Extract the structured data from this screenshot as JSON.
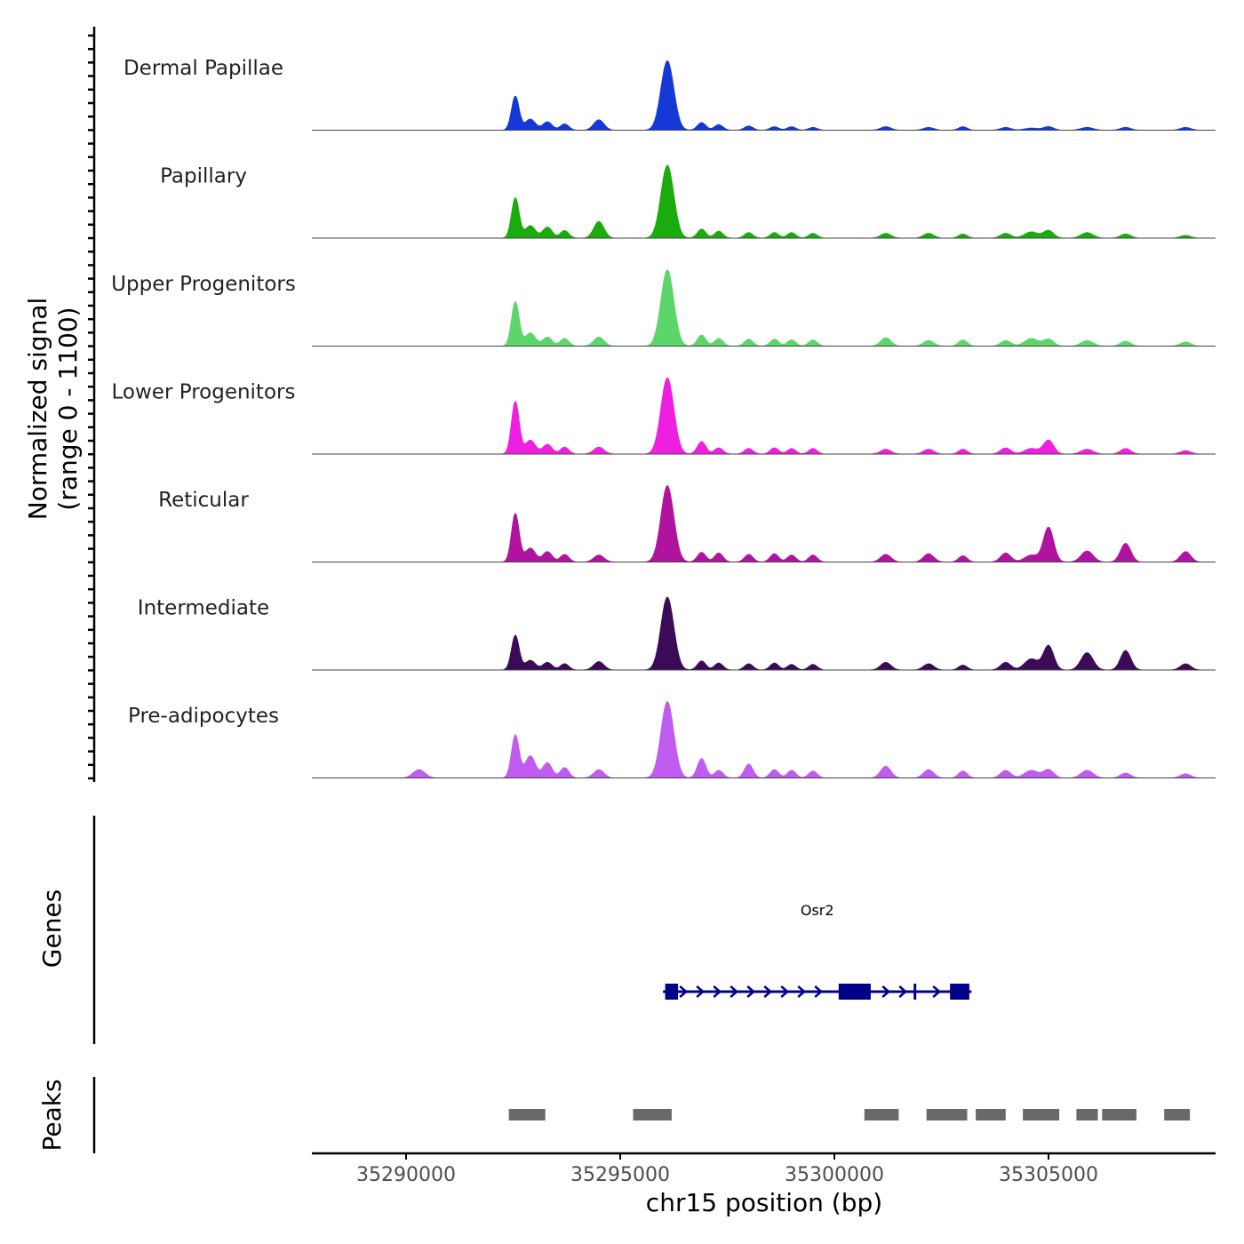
{
  "chart_data": {
    "type": "area",
    "title": "",
    "ylabel": "Normalized signal",
    "ylabel_range": "(range 0 - 1100)",
    "ylim": [
      0,
      1100
    ],
    "xlabel": "chr15 position (bp)",
    "xlim": [
      35287800,
      35308900
    ],
    "x_ticks": [
      35290000,
      35295000,
      35300000,
      35305000
    ],
    "x_tick_labels": [
      "35290000",
      "35295000",
      "35300000",
      "35305000"
    ],
    "peak_shapes": [
      {
        "center": 35292550,
        "width": 90
      },
      {
        "center": 35292900,
        "width": 120
      },
      {
        "center": 35293300,
        "width": 110
      },
      {
        "center": 35293700,
        "width": 100
      },
      {
        "center": 35294500,
        "width": 120
      },
      {
        "center": 35296100,
        "width": 150
      },
      {
        "center": 35296900,
        "width": 100
      },
      {
        "center": 35297300,
        "width": 100
      },
      {
        "center": 35298000,
        "width": 100
      },
      {
        "center": 35298600,
        "width": 100
      },
      {
        "center": 35299000,
        "width": 100
      },
      {
        "center": 35299500,
        "width": 100
      },
      {
        "center": 35301200,
        "width": 120
      },
      {
        "center": 35302200,
        "width": 120
      },
      {
        "center": 35303000,
        "width": 100
      },
      {
        "center": 35304000,
        "width": 120
      },
      {
        "center": 35304600,
        "width": 160
      },
      {
        "center": 35305000,
        "width": 120
      },
      {
        "center": 35305900,
        "width": 140
      },
      {
        "center": 35306800,
        "width": 120
      },
      {
        "center": 35308200,
        "width": 120
      },
      {
        "center": 35290300,
        "width": 140
      }
    ],
    "series": [
      {
        "name": "Dermal Papillae",
        "color": "#1538d6",
        "values": [
          490,
          160,
          120,
          90,
          150,
          1000,
          110,
          80,
          60,
          50,
          50,
          40,
          50,
          40,
          50,
          40,
          30,
          50,
          40,
          40,
          40,
          0
        ]
      },
      {
        "name": "Papillary",
        "color": "#1aab0c",
        "values": [
          580,
          180,
          160,
          110,
          240,
          1050,
          130,
          100,
          80,
          80,
          80,
          70,
          70,
          70,
          60,
          70,
          90,
          110,
          80,
          60,
          40,
          0
        ]
      },
      {
        "name": "Upper Progenitors",
        "color": "#5cd66a",
        "values": [
          640,
          190,
          130,
          110,
          130,
          1100,
          160,
          110,
          100,
          100,
          90,
          90,
          120,
          80,
          90,
          80,
          110,
          100,
          80,
          70,
          60,
          0
        ]
      },
      {
        "name": "Lower Progenitors",
        "color": "#ef1fe1",
        "values": [
          760,
          200,
          140,
          100,
          100,
          1100,
          180,
          90,
          80,
          90,
          80,
          80,
          70,
          70,
          70,
          90,
          80,
          200,
          70,
          80,
          50,
          0
        ]
      },
      {
        "name": "Reticular",
        "color": "#b0139e",
        "values": [
          700,
          200,
          150,
          110,
          100,
          1100,
          140,
          130,
          110,
          120,
          100,
          100,
          110,
          120,
          90,
          130,
          100,
          500,
          160,
          270,
          150,
          0
        ]
      },
      {
        "name": "Intermediate",
        "color": "#3b0b57",
        "values": [
          500,
          140,
          110,
          90,
          120,
          1050,
          130,
          100,
          90,
          100,
          80,
          80,
          110,
          90,
          70,
          110,
          160,
          350,
          250,
          280,
          90,
          0
        ]
      },
      {
        "name": "Pre-adipocytes",
        "color": "#c05cf0",
        "values": [
          620,
          320,
          220,
          150,
          120,
          1100,
          280,
          110,
          200,
          120,
          110,
          100,
          170,
          120,
          100,
          110,
          110,
          120,
          110,
          70,
          60,
          120
        ]
      }
    ],
    "genes": {
      "label": "Genes",
      "items": [
        {
          "name": "Osr2",
          "strand": "+",
          "color": "#00008b",
          "start": 35296000,
          "end": 35303200,
          "exons": [
            [
              35296050,
              35296350
            ],
            [
              35300100,
              35300850
            ],
            [
              35301850,
              35301880
            ],
            [
              35302700,
              35303150
            ]
          ]
        }
      ]
    },
    "peaks": {
      "label": "Peaks",
      "color": "#696969",
      "regions": [
        [
          35292400,
          35293250
        ],
        [
          35295300,
          35296200
        ],
        [
          35300700,
          35301500
        ],
        [
          35302150,
          35303100
        ],
        [
          35303300,
          35304000
        ],
        [
          35304400,
          35305250
        ],
        [
          35305650,
          35306150
        ],
        [
          35306250,
          35307050
        ],
        [
          35307700,
          35308300
        ]
      ]
    }
  }
}
